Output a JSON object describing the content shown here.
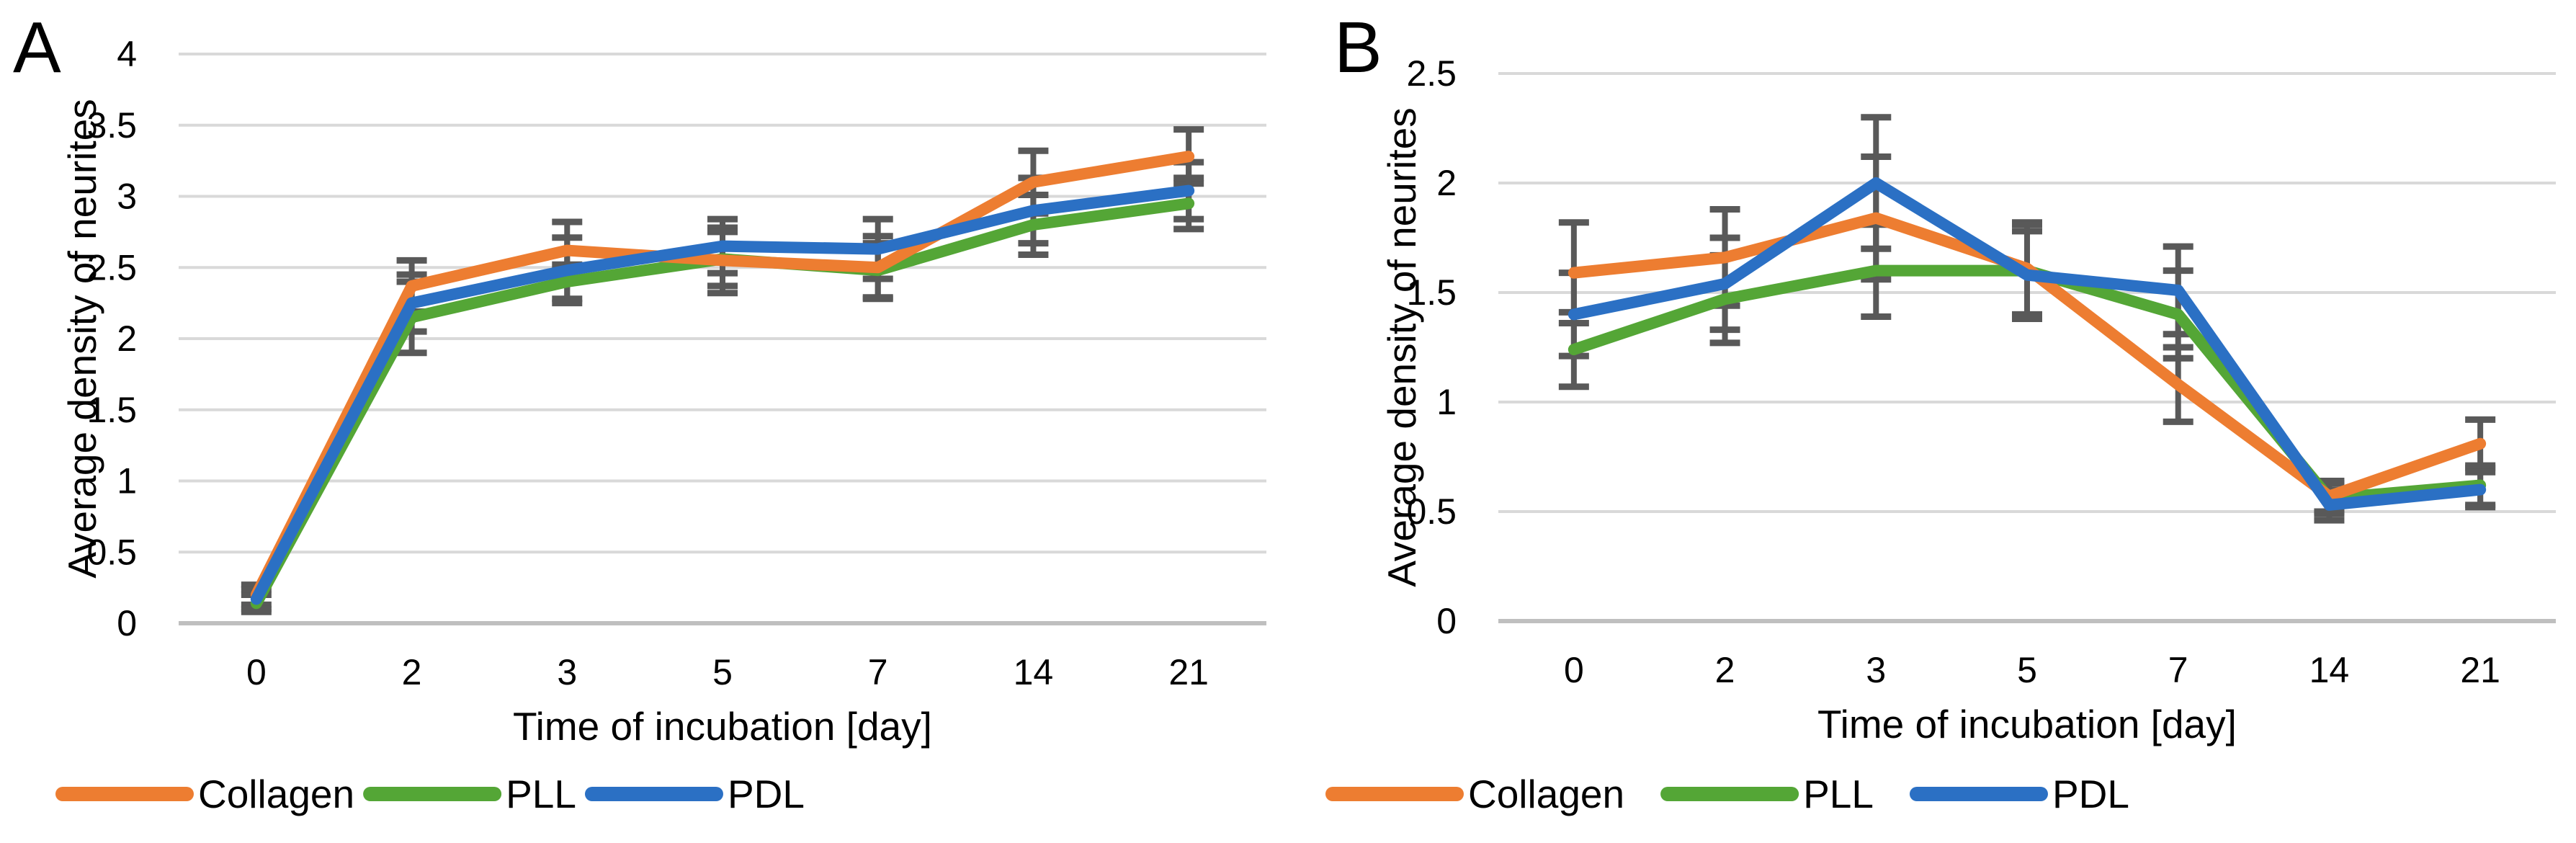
{
  "colors": {
    "collagen": "#ED7D31",
    "pll": "#54A636",
    "pdl": "#2B70C4",
    "error_bar": "#595959",
    "gridline": "#D9D9D9",
    "axis_line": "#BFBFBF",
    "text": "#000000"
  },
  "chart_data": [
    {
      "type": "line",
      "panel_label": "A",
      "xlabel": "Time of incubation [day]",
      "ylabel": "Average density of neurites",
      "categories": [
        "0",
        "2",
        "3",
        "5",
        "7",
        "14",
        "21"
      ],
      "ylim": [
        0,
        4
      ],
      "ytick_step": 0.5,
      "grid": true,
      "error_bars": true,
      "legend_position": "bottom-left",
      "series": [
        {
          "name": "Collagen",
          "color": "collagen",
          "values": [
            0.2,
            2.37,
            2.62,
            2.55,
            2.5,
            3.1,
            3.28
          ],
          "errors": [
            0.07,
            0.18,
            0.2,
            0.23,
            0.22,
            0.22,
            0.19
          ]
        },
        {
          "name": "PLL",
          "color": "pll",
          "values": [
            0.14,
            2.15,
            2.4,
            2.56,
            2.48,
            2.8,
            2.95
          ],
          "errors": [
            0.06,
            0.25,
            0.12,
            0.19,
            0.19,
            0.21,
            0.18
          ]
        },
        {
          "name": "PDL",
          "color": "pdl",
          "values": [
            0.17,
            2.25,
            2.48,
            2.65,
            2.63,
            2.9,
            3.04
          ],
          "errors": [
            0.07,
            0.2,
            0.23,
            0.19,
            0.21,
            0.23,
            0.2
          ]
        }
      ]
    },
    {
      "type": "line",
      "panel_label": "B",
      "xlabel": "Time of incubation [day]",
      "ylabel": "Average density of neurites",
      "categories": [
        "0",
        "2",
        "3",
        "5",
        "7",
        "14",
        "21"
      ],
      "ylim": [
        0,
        2.5
      ],
      "ytick_step": 0.5,
      "grid": true,
      "error_bars": true,
      "legend_position": "bottom-left",
      "series": [
        {
          "name": "Collagen",
          "color": "collagen",
          "values": [
            1.59,
            1.66,
            1.84,
            1.61,
            1.08,
            0.57,
            0.81
          ],
          "errors": [
            0.23,
            0.22,
            0.28,
            0.21,
            0.17,
            0.07,
            0.11
          ]
        },
        {
          "name": "PLL",
          "color": "pll",
          "values": [
            1.24,
            1.47,
            1.6,
            1.6,
            1.4,
            0.56,
            0.62
          ],
          "errors": [
            0.17,
            0.2,
            0.21,
            0.21,
            0.2,
            0.07,
            0.09
          ]
        },
        {
          "name": "PDL",
          "color": "pdl",
          "values": [
            1.4,
            1.54,
            2.0,
            1.58,
            1.51,
            0.53,
            0.6
          ],
          "errors": [
            0.19,
            0.21,
            0.3,
            0.2,
            0.2,
            0.07,
            0.08
          ]
        }
      ]
    }
  ]
}
